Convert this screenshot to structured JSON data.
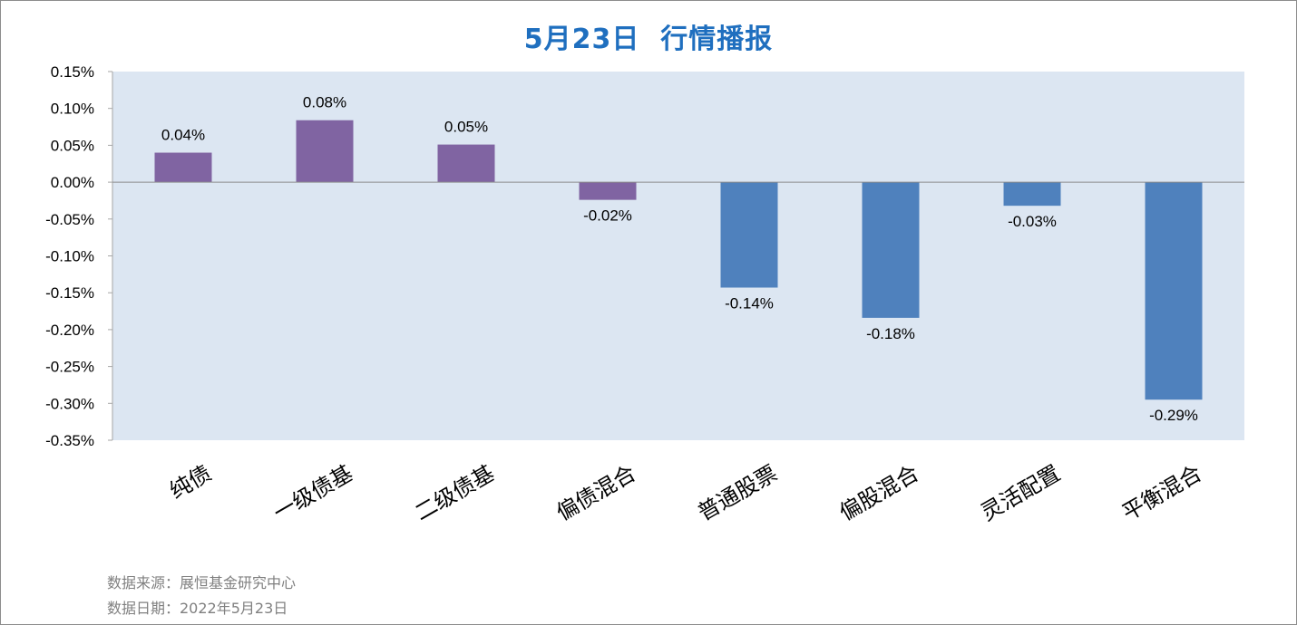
{
  "chart_data": {
    "type": "bar",
    "title": "5月23日  行情播报",
    "categories": [
      "纯债",
      "一级债基",
      "二级债基",
      "偏债混合",
      "普通股票",
      "偏股混合",
      "灵活配置",
      "平衡混合"
    ],
    "values": [
      0.04,
      0.084,
      0.051,
      -0.024,
      -0.143,
      -0.184,
      -0.032,
      -0.295
    ],
    "data_labels": [
      "0.04%",
      "0.08%",
      "0.05%",
      "-0.02%",
      "-0.14%",
      "-0.18%",
      "-0.03%",
      "-0.29%"
    ],
    "bar_colors": [
      "#8064a2",
      "#8064a2",
      "#8064a2",
      "#8064a2",
      "#4f81bd",
      "#4f81bd",
      "#4f81bd",
      "#4f81bd"
    ],
    "ylim": [
      -0.35,
      0.15
    ],
    "yticks": [
      0.15,
      0.1,
      0.05,
      0.0,
      -0.05,
      -0.1,
      -0.15,
      -0.2,
      -0.25,
      -0.3,
      -0.35
    ],
    "ytick_labels": [
      "0.15%",
      "0.10%",
      "0.05%",
      "0.00%",
      "-0.05%",
      "-0.10%",
      "-0.15%",
      "-0.20%",
      "-0.25%",
      "-0.30%",
      "-0.35%"
    ],
    "plot_background": "#dce6f2",
    "title_color": "#1f6fbf",
    "grid": false,
    "legend": "none"
  },
  "footer": {
    "source": "数据来源：展恒基金研究中心",
    "date": "数据日期：2022年5月23日"
  }
}
